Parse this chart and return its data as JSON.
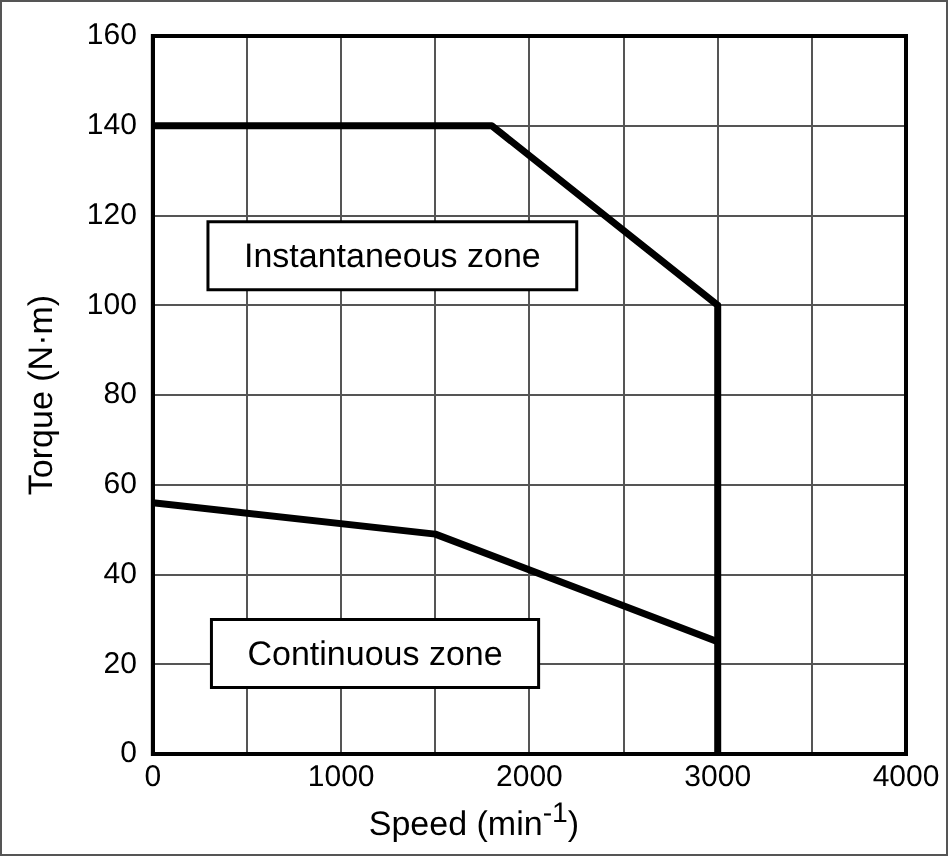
{
  "chart_data": {
    "type": "line",
    "xlabel": "Speed (min$^{-1}$)",
    "ylabel": "Torque (N·m)",
    "series": [
      {
        "color": "#000000",
        "x": [
          0,
          1800,
          3000,
          3000
        ],
        "values": [
          140,
          140,
          100,
          0
        ]
      },
      {
        "color": "#000000",
        "x": [
          0,
          1500,
          3000
        ],
        "values": [
          56,
          49,
          25
        ]
      }
    ],
    "xlim": [
      0,
      4000
    ],
    "xticks": [
      0,
      {
        "value": 500,
        "label": null
      },
      1000,
      {
        "value": 1500,
        "label": null
      },
      2000,
      {
        "value": 2500,
        "label": null
      },
      3000,
      {
        "value": 3500,
        "label": null
      },
      4000
    ],
    "ylim": [
      0,
      160
    ],
    "yticks": [
      0,
      20,
      40,
      60,
      80,
      100,
      120,
      140,
      160
    ],
    "grid": true,
    "marker": "none",
    "line_style": "solid",
    "legend": false,
    "annotations": [
      "Instantaneous zone",
      "Continuous zone"
    ]
  }
}
